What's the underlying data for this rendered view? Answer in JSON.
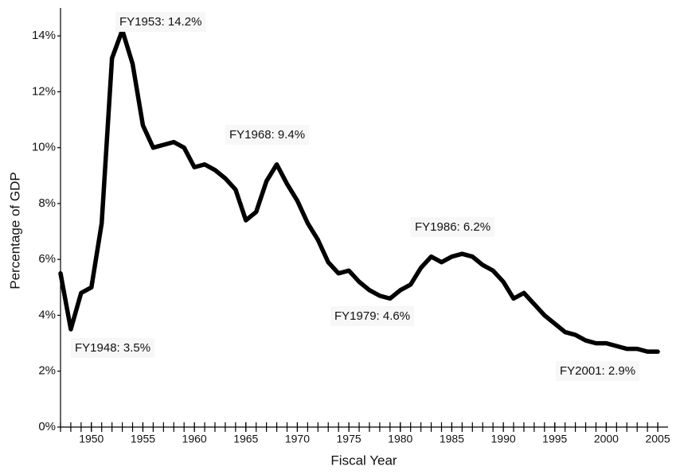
{
  "chart_data": {
    "type": "line",
    "xlabel": "Fiscal Year",
    "ylabel": "Percentage of GDP",
    "x": [
      1947,
      1948,
      1949,
      1950,
      1951,
      1952,
      1953,
      1954,
      1955,
      1956,
      1957,
      1958,
      1959,
      1960,
      1961,
      1962,
      1963,
      1964,
      1965,
      1966,
      1967,
      1968,
      1969,
      1970,
      1971,
      1972,
      1973,
      1974,
      1975,
      1976,
      1977,
      1978,
      1979,
      1980,
      1981,
      1982,
      1983,
      1984,
      1985,
      1986,
      1987,
      1988,
      1989,
      1990,
      1991,
      1992,
      1993,
      1994,
      1995,
      1996,
      1997,
      1998,
      1999,
      2000,
      2001,
      2002,
      2003,
      2004,
      2005
    ],
    "series": [
      {
        "color": "#000000",
        "values": [
          5.5,
          3.5,
          4.8,
          5.0,
          7.3,
          13.2,
          14.2,
          13.0,
          10.8,
          10.0,
          10.1,
          10.2,
          10.0,
          9.3,
          9.4,
          9.2,
          8.9,
          8.5,
          7.4,
          7.7,
          8.8,
          9.4,
          8.7,
          8.1,
          7.3,
          6.7,
          5.9,
          5.5,
          5.6,
          5.2,
          4.9,
          4.7,
          4.6,
          4.9,
          5.1,
          5.7,
          6.1,
          5.9,
          6.1,
          6.2,
          6.1,
          5.8,
          5.6,
          5.2,
          4.6,
          4.8,
          4.4,
          4.0,
          3.7,
          3.4,
          3.3,
          3.1,
          3.0,
          3.0,
          2.9,
          2.8,
          2.8,
          2.7,
          2.7
        ]
      }
    ],
    "annotations": [
      "FY1953:  14.2%",
      "FY1968:  9.4%",
      "FY1986:  6.2%",
      "FY1979:  4.6%",
      "FY1948:  3.5%",
      "FY2001:  2.9%"
    ],
    "xlim": [
      1947,
      2006
    ],
    "xticks": [
      1950,
      1955,
      1960,
      1965,
      1970,
      1975,
      1980,
      1985,
      1990,
      1995,
      2000,
      2005
    ],
    "ylim": [
      0,
      15
    ],
    "yticks": [
      {
        "value": 0,
        "label": "0%"
      },
      {
        "value": 2,
        "label": "2%"
      },
      {
        "value": 4,
        "label": "4%"
      },
      {
        "value": 6,
        "label": "6%"
      },
      {
        "value": 8,
        "label": "8%"
      },
      {
        "value": 10,
        "label": "10%"
      },
      {
        "value": 12,
        "label": "12%"
      },
      {
        "value": 14,
        "label": "14%"
      }
    ],
    "grid": false
  }
}
